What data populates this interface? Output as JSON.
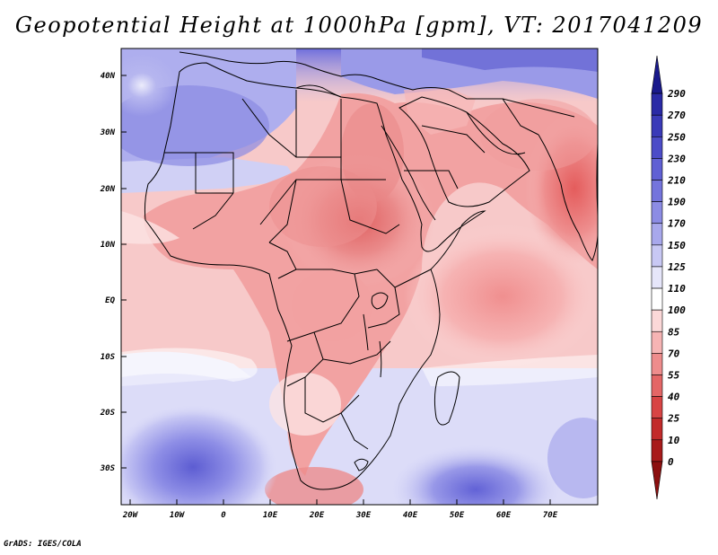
{
  "title": "Geopotential Height at 1000hPa [gpm], VT: 2017041209",
  "credit": "GrADS: IGES/COLA",
  "map": {
    "lat_labels": [
      "40N",
      "30N",
      "20N",
      "10N",
      "EQ",
      "10S",
      "20S",
      "30S"
    ],
    "lon_labels": [
      "20W",
      "10W",
      "0",
      "10E",
      "20E",
      "30E",
      "40E",
      "50E",
      "60E",
      "70E"
    ]
  },
  "colorbar": {
    "levels": [
      "290",
      "270",
      "250",
      "230",
      "210",
      "190",
      "170",
      "150",
      "125",
      "110",
      "100",
      "85",
      "70",
      "55",
      "40",
      "25",
      "10",
      "0"
    ],
    "colors": [
      "#1a1a8c",
      "#2a2aa6",
      "#3a3ab8",
      "#4c4cc8",
      "#6060d4",
      "#7474dc",
      "#8c8ce4",
      "#a8a8ec",
      "#c8c8f4",
      "#e6e6fa",
      "#ffffff",
      "#fbd8d8",
      "#f6b4b4",
      "#ee8c8c",
      "#e46666",
      "#d84444",
      "#c22a2a",
      "#a81a1a",
      "#8c1010"
    ]
  }
}
